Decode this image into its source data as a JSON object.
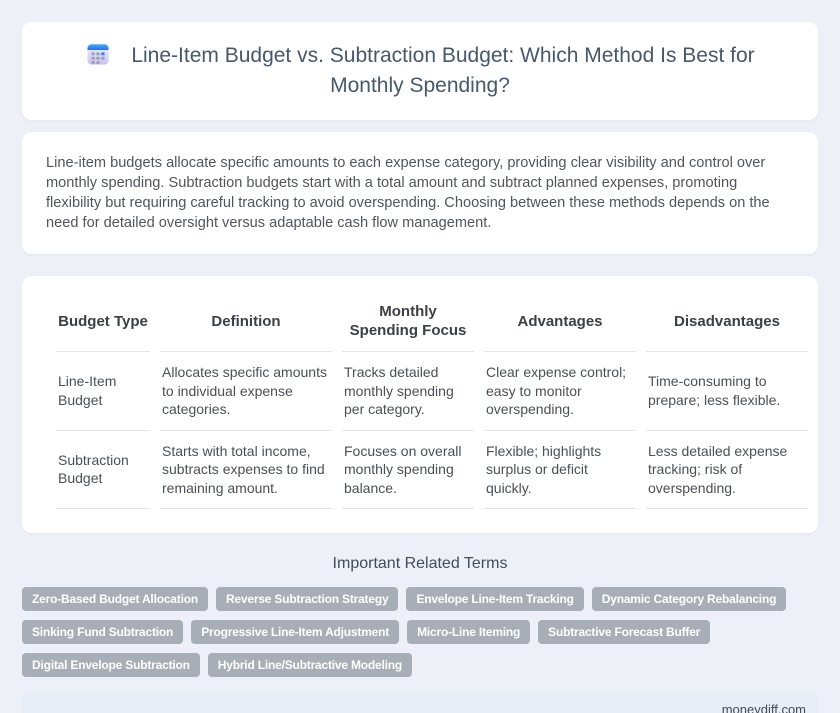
{
  "colors": {
    "page_bg": "#edf1f7",
    "card_bg": "#ffffff",
    "title_text": "#47586b",
    "body_text": "#50555c",
    "table_header_text": "#3b4045",
    "table_cell_text": "#4a5056",
    "divider": "#e1e4e9",
    "tag_bg": "#a8aeb6",
    "tag_text": "#ffffff",
    "footer_bg": "#e8eef7",
    "footer_text": "#434c56",
    "calendar_icon_blue": "#2f7bf3"
  },
  "header": {
    "icon": "calendar",
    "title": "Line-Item Budget vs. Subtraction Budget: Which Method Is Best for Monthly Spending?"
  },
  "intro": {
    "text": "Line-item budgets allocate specific amounts to each expense category, providing clear visibility and control over monthly spending. Subtraction budgets start with a total amount and subtract planned expenses, promoting flexibility but requiring careful tracking to avoid overspending. Choosing between these methods depends on the need for detailed oversight versus adaptable cash flow management."
  },
  "comparison_table": {
    "columns": [
      "Budget Type",
      "Definition",
      "Monthly Spending Focus",
      "Advantages",
      "Disadvantages"
    ],
    "rows": [
      [
        "Line-Item Budget",
        "Allocates specific amounts to individual expense categories.",
        "Tracks detailed monthly spending per category.",
        "Clear expense control; easy to monitor overspending.",
        "Time-consuming to prepare; less flexible."
      ],
      [
        "Subtraction Budget",
        "Starts with total income, subtracts expenses to find remaining amount.",
        "Focuses on overall monthly spending balance.",
        "Flexible; highlights surplus or deficit quickly.",
        "Less detailed expense tracking; risk of overspending."
      ]
    ]
  },
  "related_terms": {
    "heading": "Important Related Terms",
    "terms": [
      "Zero-Based Budget Allocation",
      "Reverse Subtraction Strategy",
      "Envelope Line-Item Tracking",
      "Dynamic Category Rebalancing",
      "Sinking Fund Subtraction",
      "Progressive Line-Item Adjustment",
      "Micro-Line Iteming",
      "Subtractive Forecast Buffer",
      "Digital Envelope Subtraction",
      "Hybrid Line/Subtractive Modeling"
    ]
  },
  "footer": {
    "site": "moneydiff.com"
  }
}
